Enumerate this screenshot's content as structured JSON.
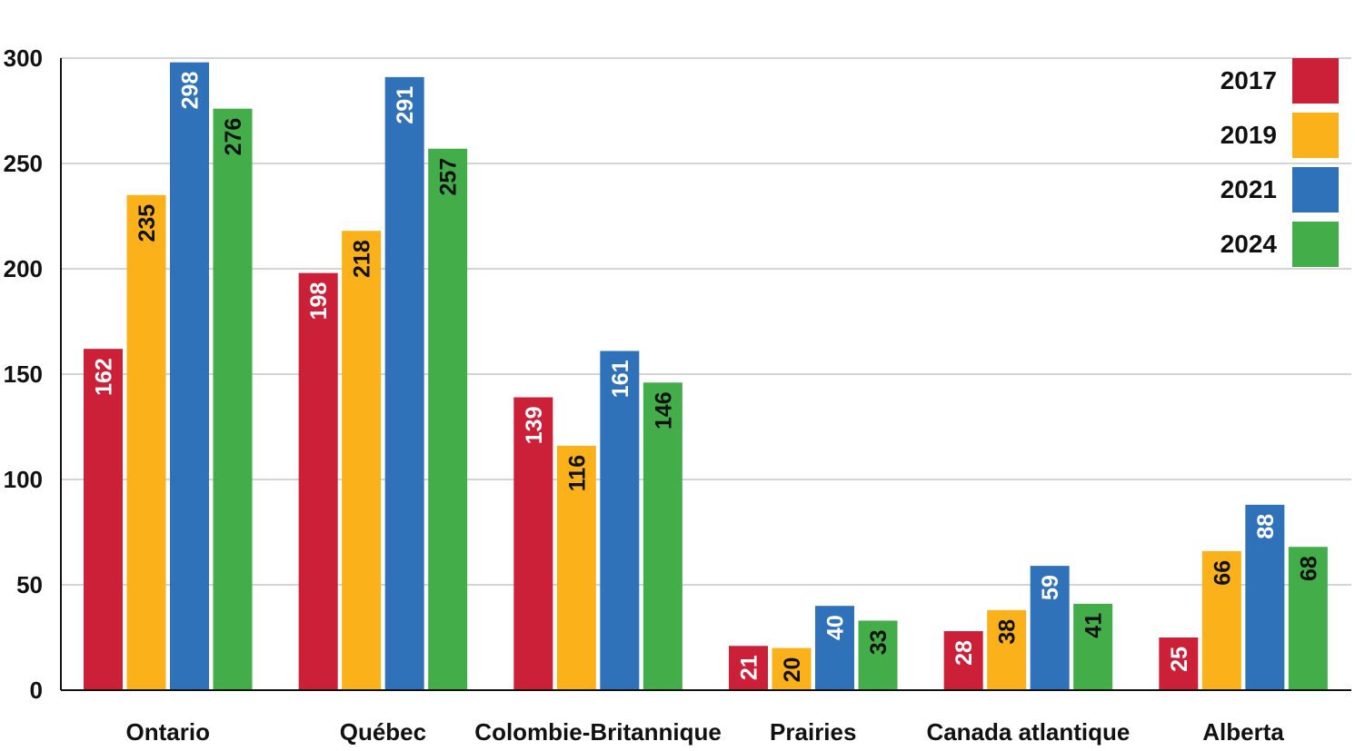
{
  "chart_data": {
    "type": "bar",
    "title": "",
    "xlabel": "",
    "ylabel": "",
    "ylim": [
      0,
      300
    ],
    "yticks": [
      0,
      50,
      100,
      150,
      200,
      250,
      300
    ],
    "grid": true,
    "legend_position": "top-right",
    "categories": [
      "Ontario",
      "Québec",
      "Colombie-Britannique",
      "Prairies",
      "Canada atlantique",
      "Alberta"
    ],
    "series": [
      {
        "name": "2017",
        "color": "#cc2039",
        "label_color": "#ffffff",
        "values": [
          162,
          198,
          139,
          21,
          28,
          25
        ]
      },
      {
        "name": "2019",
        "color": "#fbb11a",
        "label_color": "#111111",
        "values": [
          235,
          218,
          116,
          20,
          38,
          66
        ]
      },
      {
        "name": "2021",
        "color": "#2f72b9",
        "label_color": "#ffffff",
        "values": [
          298,
          291,
          161,
          40,
          59,
          88
        ]
      },
      {
        "name": "2024",
        "color": "#43ad4a",
        "label_color": "#111111",
        "values": [
          276,
          257,
          146,
          33,
          41,
          68
        ]
      }
    ]
  }
}
